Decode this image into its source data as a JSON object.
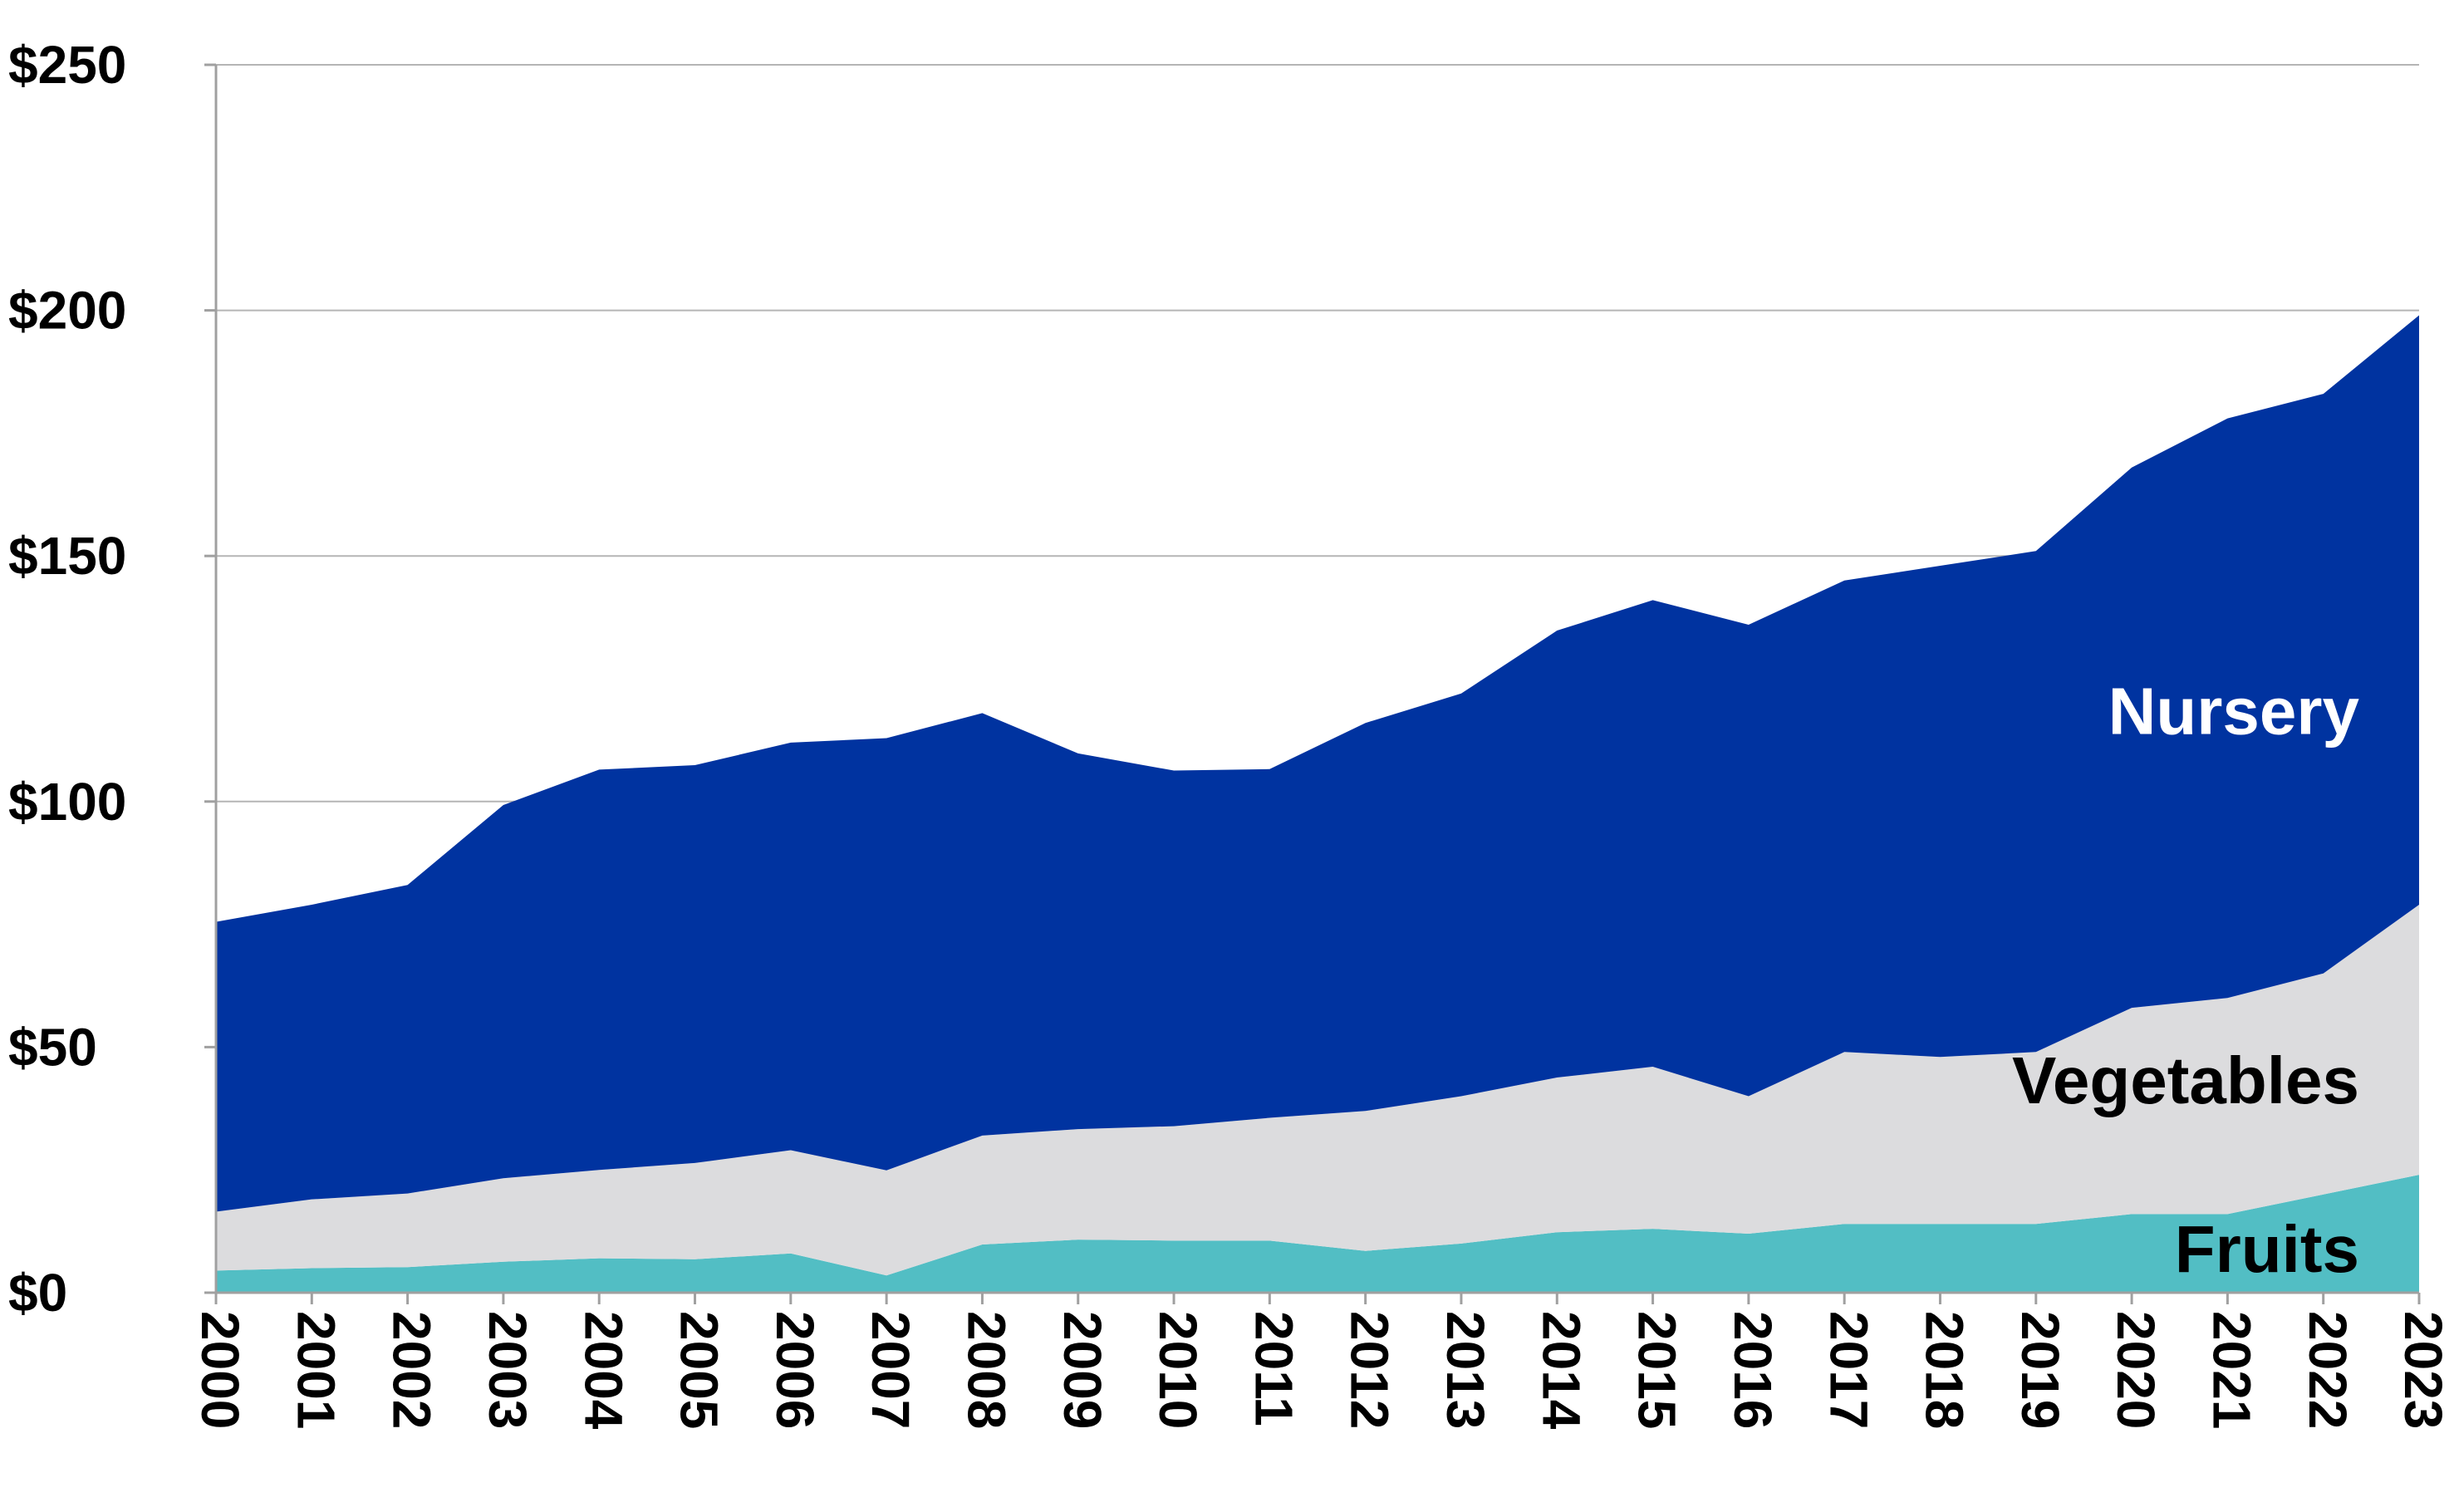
{
  "chart_data": {
    "type": "area",
    "stacked": true,
    "x": [
      2000,
      2001,
      2002,
      2003,
      2004,
      2005,
      2006,
      2007,
      2008,
      2009,
      2010,
      2011,
      2012,
      2013,
      2014,
      2015,
      2016,
      2017,
      2018,
      2019,
      2020,
      2021,
      2022,
      2023
    ],
    "x_tick_labels": [
      "2000",
      "2001",
      "2002",
      "2003",
      "2004",
      "2005",
      "2006",
      "2007",
      "2008",
      "2009",
      "2010",
      "2011",
      "2012",
      "2013",
      "2014",
      "2015",
      "2016",
      "2017",
      "2018",
      "2019",
      "2020",
      "2021",
      "2022",
      "2023"
    ],
    "ylim": [
      0,
      250
    ],
    "y_ticks": [
      0,
      50,
      100,
      150,
      200,
      250
    ],
    "y_tick_labels": [
      "$0",
      "$50",
      "$100",
      "$150",
      "$200",
      "$250"
    ],
    "grid": true,
    "series": [
      {
        "name": "Fruits",
        "color": "#52bec4",
        "label_color": "#000000",
        "values": [
          4.5,
          5,
          5.2,
          6.3,
          7,
          6.8,
          8,
          3.5,
          9.8,
          10.8,
          10.6,
          10.6,
          8.5,
          10,
          12.3,
          13,
          12,
          14,
          14,
          14,
          16,
          16,
          20,
          24
        ]
      },
      {
        "name": "Vegetables",
        "color": "#dcdcde",
        "label_color": "#000000",
        "values": [
          12,
          14,
          15,
          17,
          18,
          19.6,
          21,
          21.4,
          22.2,
          22.5,
          23.3,
          25,
          28.5,
          30,
          31.5,
          33,
          28,
          35,
          34,
          35,
          42,
          44,
          45,
          55
        ]
      },
      {
        "name": "Nursery",
        "color": "#0033a0",
        "label_color": "#ffffff",
        "values": [
          59,
          60,
          62.8,
          76,
          81.5,
          81,
          83,
          88,
          86,
          76.5,
          72.4,
          71,
          79,
          82,
          91,
          95,
          96,
          96,
          100,
          102,
          110,
          118,
          118,
          120
        ]
      }
    ]
  }
}
